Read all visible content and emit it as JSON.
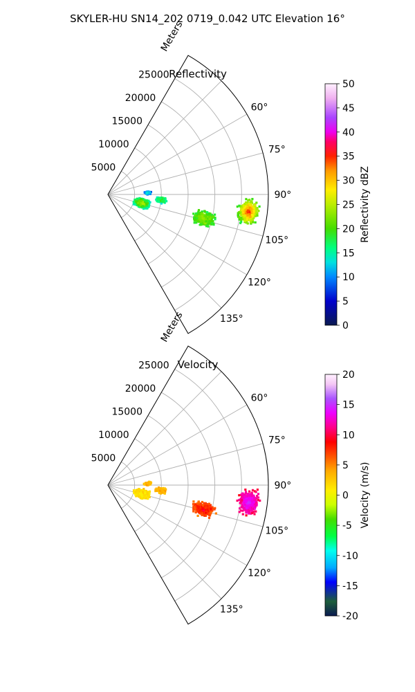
{
  "title": "SKYLER-HU  SN14_202  0719_0.042 UTC Elevation 16°",
  "chart_data": [
    {
      "type": "heatmap",
      "projection": "polar-sector",
      "title": "Reflectivity",
      "radial_label": "Meters",
      "radial_ticks": [
        5000,
        10000,
        15000,
        20000,
        25000
      ],
      "r_max": 30000,
      "theta_range": [
        30,
        150
      ],
      "theta_ticks": [
        60,
        75,
        90,
        105,
        120,
        135
      ],
      "colorbar": {
        "label": "Reflectivity dBZ",
        "range": [
          0,
          50
        ],
        "ticks": [
          0,
          5,
          10,
          15,
          20,
          25,
          30,
          35,
          40,
          45,
          50
        ],
        "stops": [
          [
            "#0a1a50",
            0
          ],
          [
            "#0000cc",
            0.1
          ],
          [
            "#0088ff",
            0.2
          ],
          [
            "#00e0e0",
            0.26
          ],
          [
            "#00ff80",
            0.32
          ],
          [
            "#44dd00",
            0.4
          ],
          [
            "#bbee00",
            0.5
          ],
          [
            "#ffee00",
            0.56
          ],
          [
            "#ff9900",
            0.64
          ],
          [
            "#ff2200",
            0.7
          ],
          [
            "#ff0066",
            0.76
          ],
          [
            "#ee00ee",
            0.8
          ],
          [
            "#aa44ff",
            0.86
          ],
          [
            "#f0b0f0",
            0.94
          ],
          [
            "#fff0ff",
            1
          ]
        ]
      },
      "echo_cells": [
        {
          "r": 26500,
          "az": 97,
          "spread_r": 2300,
          "spread_az": 6,
          "peak_dbz": 36,
          "base_dbz": 18
        },
        {
          "r": 18500,
          "az": 104,
          "spread_r": 2500,
          "spread_az": 5,
          "peak_dbz": 24,
          "base_dbz": 18
        },
        {
          "r": 6500,
          "az": 104,
          "spread_r": 1800,
          "spread_az": 9,
          "peak_dbz": 26,
          "base_dbz": 14
        },
        {
          "r": 10000,
          "az": 96,
          "spread_r": 1200,
          "spread_az": 4,
          "peak_dbz": 20,
          "base_dbz": 14
        },
        {
          "r": 7500,
          "az": 88,
          "spread_r": 800,
          "spread_az": 3,
          "peak_dbz": 15,
          "base_dbz": 8
        }
      ]
    },
    {
      "type": "heatmap",
      "projection": "polar-sector",
      "title": "Velocity",
      "radial_label": "Meters",
      "radial_ticks": [
        5000,
        10000,
        15000,
        20000,
        25000
      ],
      "r_max": 30000,
      "theta_range": [
        30,
        150
      ],
      "theta_ticks": [
        60,
        75,
        90,
        105,
        120,
        135
      ],
      "colorbar": {
        "label": "Velocity (m/s)",
        "range": [
          -20,
          20
        ],
        "ticks": [
          -20,
          -15,
          -10,
          -5,
          0,
          5,
          10,
          15,
          20
        ],
        "stops": [
          [
            "#0a1a50",
            0
          ],
          [
            "#1e5e3a",
            0.06
          ],
          [
            "#0000ff",
            0.14
          ],
          [
            "#00aaff",
            0.2
          ],
          [
            "#00ffee",
            0.27
          ],
          [
            "#00ff44",
            0.33
          ],
          [
            "#44dd00",
            0.4
          ],
          [
            "#ccff00",
            0.46
          ],
          [
            "#ffee00",
            0.52
          ],
          [
            "#ffaa00",
            0.6
          ],
          [
            "#ff5500",
            0.66
          ],
          [
            "#ff0000",
            0.72
          ],
          [
            "#ff0088",
            0.78
          ],
          [
            "#ee00ff",
            0.84
          ],
          [
            "#aa55ff",
            0.9
          ],
          [
            "#f5c8f5",
            0.96
          ],
          [
            "#fff0ff",
            1
          ]
        ]
      },
      "echo_cells": [
        {
          "r": 26500,
          "az": 97,
          "spread_r": 2300,
          "spread_az": 6,
          "peak_v": 15,
          "base_v": 10
        },
        {
          "r": 18500,
          "az": 104,
          "spread_r": 2500,
          "spread_az": 5,
          "peak_v": 9,
          "base_v": 6
        },
        {
          "r": 6500,
          "az": 104,
          "spread_r": 1800,
          "spread_az": 9,
          "peak_v": 1,
          "base_v": 2
        },
        {
          "r": 10000,
          "az": 96,
          "spread_r": 1200,
          "spread_az": 4,
          "peak_v": 4,
          "base_v": 3
        },
        {
          "r": 7500,
          "az": 88,
          "spread_r": 800,
          "spread_az": 3,
          "peak_v": 4,
          "base_v": 3
        }
      ]
    }
  ]
}
